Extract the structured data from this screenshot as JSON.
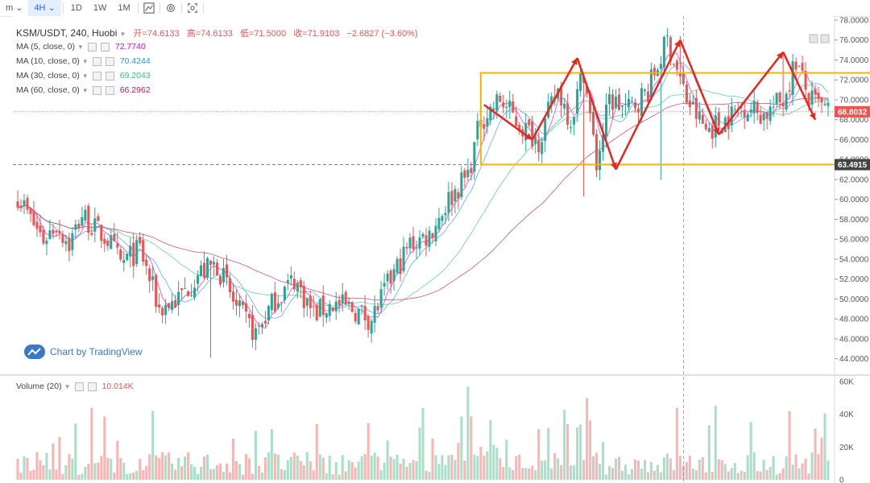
{
  "toolbar": {
    "items": [
      "m",
      "4H",
      "1D",
      "1W",
      "1M"
    ],
    "active": "4H",
    "icons": [
      "chart-style-icon",
      "settings-icon",
      "screenshot-icon"
    ]
  },
  "header": {
    "symbol": "KSM/USDT, 240, Huobi",
    "open_label": "开=74.6133",
    "high_label": "高=74.6133",
    "low_label": "低=71.5000",
    "close_label": "收=71.9103",
    "change_label": "−2.6827 (−3.60%)"
  },
  "indicators": [
    {
      "label": "MA (5, close, 0)",
      "value": "72.7740",
      "color": "#d500f9"
    },
    {
      "label": "MA (10, close, 0)",
      "value": "70.4244",
      "color": "#2196f3"
    },
    {
      "label": "MA (30, close, 0)",
      "value": "69.2043",
      "color": "#2ecc71"
    },
    {
      "label": "MA (60, close, 0)",
      "value": "66.2962",
      "color": "#c2185b"
    }
  ],
  "volume": {
    "label": "Volume (20)",
    "value": "10.014K"
  },
  "watermark": "Chart by TradingView",
  "colors": {
    "up": "#26a69a",
    "down": "#ef5350",
    "vol_up": "#a8dfc8",
    "vol_down": "#f7b6b4",
    "box": "#f5b400",
    "pattern": "#e8261c",
    "price_line": "#ef5350"
  },
  "chart_data": {
    "type": "candlestick",
    "price_axis": {
      "ylim": [
        42.6,
        78
      ],
      "ticks": [
        44,
        46,
        48,
        50,
        52,
        54,
        56,
        58,
        60,
        62,
        64,
        66,
        68,
        70,
        72,
        74,
        76,
        78
      ]
    },
    "price_tick_labels": [
      "44.0000",
      "46.0000",
      "48.0000",
      "50.0000",
      "52.0000",
      "54.0000",
      "56.0000",
      "58.0000",
      "60.0000",
      "62.0000",
      "64.0000",
      "66.0000",
      "68.0000",
      "70.0000",
      "72.0000",
      "74.0000",
      "76.0000",
      "78.0000"
    ],
    "current_price": {
      "value": 68.8032,
      "label": "68.8032"
    },
    "support_price": {
      "value": 63.4915,
      "label": "63.4915"
    },
    "volume_axis": {
      "ylim": [
        0,
        62000
      ],
      "ticks": [
        0,
        20000,
        40000,
        60000
      ],
      "tick_labels": [
        "0",
        "20K",
        "40K",
        "60K"
      ]
    },
    "close_path": [
      [
        0,
        60.5
      ],
      [
        4,
        58
      ],
      [
        8,
        56
      ],
      [
        12,
        57.5
      ],
      [
        16,
        55.5
      ],
      [
        20,
        58.5
      ],
      [
        24,
        57
      ],
      [
        28,
        56
      ],
      [
        32,
        53.5
      ],
      [
        38,
        55
      ],
      [
        44,
        49
      ],
      [
        50,
        50
      ],
      [
        56,
        52.5
      ],
      [
        62,
        53.5
      ],
      [
        68,
        49
      ],
      [
        74,
        46.5
      ],
      [
        80,
        50
      ],
      [
        86,
        52
      ],
      [
        92,
        48.5
      ],
      [
        98,
        49.5
      ],
      [
        104,
        49
      ],
      [
        110,
        48
      ],
      [
        116,
        52
      ],
      [
        122,
        55.5
      ],
      [
        128,
        56.5
      ],
      [
        134,
        60
      ],
      [
        140,
        62.5
      ],
      [
        144,
        68
      ],
      [
        150,
        70
      ],
      [
        156,
        67.5
      ],
      [
        162,
        66
      ],
      [
        168,
        71
      ],
      [
        172,
        68
      ],
      [
        176,
        73
      ],
      [
        180,
        63.5
      ],
      [
        184,
        70
      ],
      [
        190,
        69
      ],
      [
        196,
        71
      ],
      [
        202,
        76
      ],
      [
        208,
        70
      ],
      [
        214,
        67
      ],
      [
        220,
        68
      ],
      [
        226,
        69.5
      ],
      [
        232,
        68.5
      ],
      [
        238,
        70
      ],
      [
        242,
        74
      ],
      [
        246,
        70
      ],
      [
        252,
        68.8
      ]
    ],
    "n_candles": 253,
    "rectangle": {
      "top": 72.7,
      "bottom": 63.5,
      "start_index": 145,
      "end_index": 252
    },
    "pattern_points": [
      [
        145,
        69.5
      ],
      [
        160,
        66
      ],
      [
        174,
        74.2
      ],
      [
        186,
        63
      ],
      [
        206,
        76
      ],
      [
        218,
        66.5
      ],
      [
        238,
        74.8
      ],
      [
        248,
        68
      ]
    ]
  }
}
